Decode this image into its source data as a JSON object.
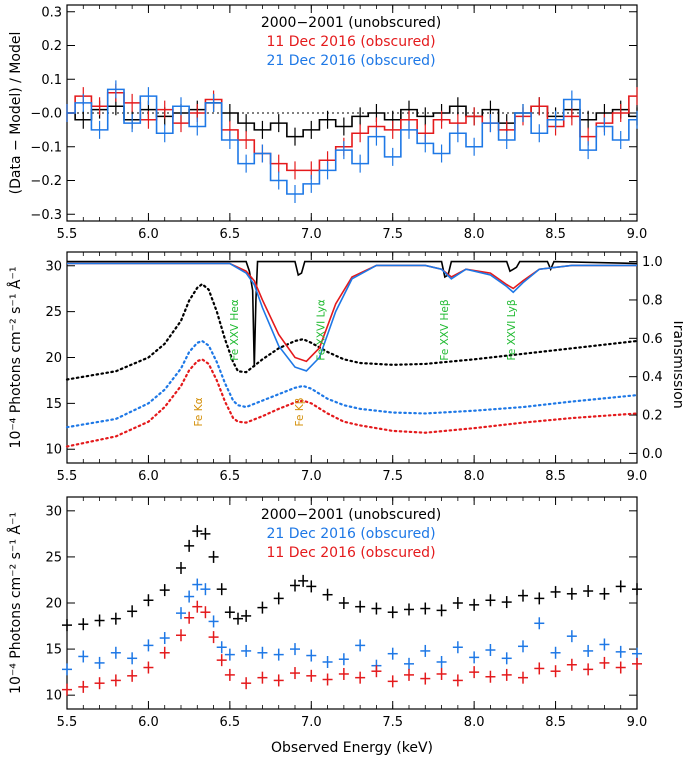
{
  "figure": {
    "xlabel": "Observed Energy (keV)",
    "legend": [
      "2000−2001 (unobscured)",
      "11 Dec 2016 (obscured)",
      "21 Dec 2016 (obscured)"
    ]
  },
  "chart_data": [
    {
      "type": "line",
      "panel": "top",
      "ylabel": "(Data − Model) / Model",
      "xlim": [
        5.5,
        9.0
      ],
      "ylim": [
        -0.32,
        0.32
      ],
      "xticks": [
        "5.5",
        "6.0",
        "6.5",
        "7.0",
        "7.5",
        "8.0",
        "8.5",
        "9.0"
      ],
      "yticks": [
        "−0.3",
        "−0.2",
        "−0.1",
        "−0.0",
        "0.1",
        "0.2",
        "0.3"
      ],
      "legend_placement": "top-center",
      "series": [
        {
          "name": "2000−2001 (unobscured)",
          "color": "#000000",
          "x": [
            5.5,
            5.6,
            5.7,
            5.8,
            5.9,
            6.0,
            6.1,
            6.2,
            6.3,
            6.4,
            6.5,
            6.6,
            6.7,
            6.8,
            6.9,
            7.0,
            7.1,
            7.2,
            7.3,
            7.4,
            7.5,
            7.6,
            7.7,
            7.8,
            7.9,
            8.0,
            8.1,
            8.2,
            8.3,
            8.4,
            8.5,
            8.6,
            8.7,
            8.8,
            8.9,
            9.0
          ],
          "y": [
            0.0,
            -0.02,
            0.01,
            0.02,
            -0.02,
            0.01,
            -0.01,
            0.0,
            0.01,
            0.03,
            0.0,
            -0.03,
            -0.05,
            -0.03,
            -0.07,
            -0.05,
            -0.02,
            -0.04,
            -0.01,
            0.0,
            -0.02,
            0.01,
            -0.01,
            0.0,
            0.02,
            -0.01,
            0.01,
            -0.03,
            0.0,
            0.02,
            -0.01,
            0.01,
            -0.02,
            0.0,
            0.01,
            -0.01
          ]
        },
        {
          "name": "11 Dec 2016 (obscured)",
          "color": "#e41a1c",
          "x": [
            5.5,
            5.6,
            5.7,
            5.8,
            5.9,
            6.0,
            6.1,
            6.2,
            6.3,
            6.4,
            6.5,
            6.6,
            6.7,
            6.8,
            6.9,
            7.0,
            7.1,
            7.2,
            7.3,
            7.4,
            7.5,
            7.6,
            7.7,
            7.8,
            7.9,
            8.0,
            8.1,
            8.2,
            8.3,
            8.4,
            8.5,
            8.6,
            8.7,
            8.8,
            8.9,
            9.0
          ],
          "y": [
            0.0,
            0.05,
            0.02,
            0.06,
            0.03,
            -0.02,
            0.01,
            -0.03,
            0.0,
            0.04,
            -0.05,
            -0.08,
            -0.12,
            -0.15,
            -0.17,
            -0.17,
            -0.14,
            -0.1,
            -0.06,
            -0.04,
            -0.05,
            -0.02,
            -0.06,
            -0.02,
            -0.03,
            -0.01,
            -0.03,
            -0.05,
            -0.01,
            0.02,
            -0.04,
            -0.01,
            -0.07,
            -0.03,
            0.0,
            0.05
          ]
        },
        {
          "name": "21 Dec 2016 (obscured)",
          "color": "#1e78e6",
          "x": [
            5.5,
            5.6,
            5.7,
            5.8,
            5.9,
            6.0,
            6.1,
            6.2,
            6.3,
            6.4,
            6.5,
            6.6,
            6.7,
            6.8,
            6.9,
            7.0,
            7.1,
            7.2,
            7.3,
            7.4,
            7.5,
            7.6,
            7.7,
            7.8,
            7.9,
            8.0,
            8.1,
            8.2,
            8.3,
            8.4,
            8.5,
            8.6,
            8.7,
            8.8,
            8.9,
            9.0
          ],
          "y": [
            0.0,
            0.03,
            -0.05,
            0.07,
            -0.03,
            0.05,
            -0.06,
            0.02,
            -0.04,
            0.03,
            -0.08,
            -0.15,
            -0.12,
            -0.2,
            -0.24,
            -0.21,
            -0.17,
            -0.11,
            -0.15,
            -0.07,
            -0.13,
            -0.05,
            -0.09,
            -0.12,
            -0.06,
            -0.1,
            -0.03,
            -0.08,
            0.0,
            -0.06,
            -0.02,
            0.04,
            -0.11,
            -0.04,
            -0.08,
            -0.02
          ]
        }
      ]
    },
    {
      "type": "line",
      "panel": "middle",
      "ylabel": "10⁻⁴ Photons cm⁻² s⁻¹ Å⁻¹",
      "ylabel_right": "Transmission",
      "xlim": [
        5.5,
        9.0
      ],
      "ylim": [
        8.5,
        31.5
      ],
      "ylim_right": [
        -0.05,
        1.05
      ],
      "xticks": [
        "5.5",
        "6.0",
        "6.5",
        "7.0",
        "7.5",
        "8.0",
        "8.5",
        "9.0"
      ],
      "yticks": [
        "10",
        "15",
        "20",
        "25",
        "30"
      ],
      "yticks_right": [
        "0.0",
        "0.2",
        "0.4",
        "0.6",
        "0.8",
        "1.0"
      ],
      "annotations": [
        {
          "text": "Fe XXV Heα",
          "x": 6.55,
          "color": "#22bb33"
        },
        {
          "text": "Fe XXVI Lyα",
          "x": 7.08,
          "color": "#22bb33"
        },
        {
          "text": "Fe XXV Heβ",
          "x": 7.84,
          "color": "#22bb33"
        },
        {
          "text": "Fe XXVI Lyβ",
          "x": 8.25,
          "color": "#22bb33"
        },
        {
          "text": "Fe Kα",
          "x": 6.33,
          "color": "#d4900a"
        },
        {
          "text": "Fe Kβ",
          "x": 6.95,
          "color": "#d4900a"
        }
      ],
      "series": [
        {
          "name": "2000−2001 (unobscured)",
          "style": "dotted",
          "color": "#000000",
          "x": [
            5.5,
            5.8,
            6.0,
            6.1,
            6.2,
            6.25,
            6.3,
            6.33,
            6.37,
            6.42,
            6.47,
            6.52,
            6.55,
            6.6,
            6.7,
            6.8,
            6.9,
            6.95,
            7.0,
            7.1,
            7.2,
            7.3,
            7.5,
            7.7,
            8.0,
            8.3,
            8.6,
            9.0
          ],
          "y": [
            17.6,
            18.5,
            20.0,
            21.5,
            24.0,
            26.2,
            27.6,
            28.0,
            27.4,
            25.0,
            22.0,
            19.5,
            18.5,
            18.4,
            19.8,
            21.0,
            21.8,
            22.0,
            21.6,
            20.6,
            19.8,
            19.4,
            19.2,
            19.3,
            19.8,
            20.4,
            21.0,
            21.8
          ]
        },
        {
          "name": "21 Dec 2016 (obscured)",
          "style": "dotted",
          "color": "#1e78e6",
          "x": [
            5.5,
            5.8,
            6.0,
            6.1,
            6.2,
            6.25,
            6.3,
            6.33,
            6.37,
            6.42,
            6.47,
            6.52,
            6.55,
            6.6,
            6.7,
            6.8,
            6.9,
            6.95,
            7.0,
            7.1,
            7.2,
            7.3,
            7.5,
            7.7,
            8.0,
            8.3,
            8.6,
            9.0
          ],
          "y": [
            12.4,
            13.3,
            15.0,
            16.5,
            18.8,
            20.6,
            21.6,
            21.8,
            21.3,
            19.5,
            17.2,
            15.3,
            14.8,
            14.6,
            15.3,
            16.0,
            16.7,
            16.9,
            16.6,
            15.5,
            14.8,
            14.4,
            14.0,
            13.9,
            14.2,
            14.6,
            15.2,
            15.9
          ]
        },
        {
          "name": "11 Dec 2016 (obscured)",
          "style": "dotted",
          "color": "#e41a1c",
          "x": [
            5.5,
            5.8,
            6.0,
            6.1,
            6.2,
            6.25,
            6.3,
            6.33,
            6.37,
            6.42,
            6.47,
            6.52,
            6.55,
            6.6,
            6.7,
            6.8,
            6.9,
            6.95,
            7.0,
            7.1,
            7.2,
            7.3,
            7.5,
            7.7,
            8.0,
            8.3,
            8.6,
            9.0
          ],
          "y": [
            10.3,
            11.4,
            13.0,
            14.6,
            16.9,
            18.6,
            19.6,
            19.8,
            19.3,
            17.5,
            15.2,
            13.4,
            13.0,
            12.9,
            13.6,
            14.4,
            15.1,
            15.3,
            15.0,
            13.9,
            13.0,
            12.6,
            12.0,
            11.8,
            12.3,
            12.9,
            13.4,
            13.9
          ]
        },
        {
          "name": "Transmission (2000−2001)",
          "style": "solid",
          "color": "#000000",
          "axis": "right",
          "x": [
            5.5,
            6.55,
            6.6,
            6.62,
            6.64,
            6.65,
            6.66,
            6.67,
            6.7,
            6.9,
            6.92,
            6.94,
            6.96,
            7.0,
            7.8,
            7.82,
            7.84,
            7.86,
            8.2,
            8.22,
            8.24,
            8.26,
            8.28,
            8.45,
            8.47,
            8.49,
            9.0
          ],
          "y": [
            1.0,
            1.0,
            1.0,
            0.95,
            0.85,
            0.45,
            0.8,
            1.0,
            1.0,
            1.0,
            0.93,
            0.94,
            1.0,
            1.0,
            1.0,
            0.92,
            0.93,
            1.0,
            1.0,
            0.95,
            0.96,
            0.97,
            1.0,
            1.0,
            0.96,
            1.0,
            0.99
          ]
        },
        {
          "name": "Transmission (11 Dec 2016)",
          "style": "solid",
          "color": "#e41a1c",
          "axis": "right",
          "x": [
            5.5,
            6.5,
            6.6,
            6.65,
            6.7,
            6.8,
            6.9,
            6.97,
            7.05,
            7.15,
            7.25,
            7.4,
            7.7,
            7.8,
            7.86,
            7.95,
            8.1,
            8.2,
            8.24,
            8.3,
            8.4,
            8.6,
            9.0
          ],
          "y": [
            0.99,
            0.99,
            0.95,
            0.9,
            0.8,
            0.62,
            0.5,
            0.48,
            0.55,
            0.78,
            0.92,
            0.98,
            0.98,
            0.96,
            0.92,
            0.96,
            0.94,
            0.88,
            0.86,
            0.9,
            0.96,
            0.98,
            0.98
          ]
        },
        {
          "name": "Transmission (21 Dec 2016)",
          "style": "solid",
          "color": "#1e78e6",
          "axis": "right",
          "x": [
            5.5,
            6.5,
            6.6,
            6.65,
            6.7,
            6.8,
            6.9,
            6.97,
            7.05,
            7.15,
            7.25,
            7.4,
            7.7,
            7.8,
            7.86,
            7.95,
            8.1,
            8.2,
            8.24,
            8.3,
            8.4,
            8.6,
            9.0
          ],
          "y": [
            0.99,
            0.99,
            0.94,
            0.88,
            0.76,
            0.56,
            0.45,
            0.43,
            0.5,
            0.74,
            0.91,
            0.98,
            0.98,
            0.96,
            0.91,
            0.96,
            0.93,
            0.87,
            0.84,
            0.89,
            0.96,
            0.98,
            0.98
          ]
        }
      ]
    },
    {
      "type": "scatter",
      "panel": "bottom",
      "ylabel": "10⁻⁴ Photons cm⁻² s⁻¹ Å⁻¹",
      "xlabel": "Observed Energy (keV)",
      "xlim": [
        5.5,
        9.0
      ],
      "ylim": [
        8.5,
        31.5
      ],
      "xticks": [
        "5.5",
        "6.0",
        "6.5",
        "7.0",
        "7.5",
        "8.0",
        "8.5",
        "9.0"
      ],
      "yticks": [
        "10",
        "15",
        "20",
        "25",
        "30"
      ],
      "legend_placement": "top-center",
      "series": [
        {
          "name": "2000−2001 (unobscured)",
          "color": "#000000",
          "x": [
            5.5,
            5.6,
            5.7,
            5.8,
            5.9,
            6.0,
            6.1,
            6.2,
            6.25,
            6.3,
            6.35,
            6.4,
            6.45,
            6.5,
            6.55,
            6.6,
            6.7,
            6.8,
            6.9,
            6.95,
            7.0,
            7.1,
            7.2,
            7.3,
            7.4,
            7.5,
            7.6,
            7.7,
            7.8,
            7.9,
            8.0,
            8.1,
            8.2,
            8.3,
            8.4,
            8.5,
            8.6,
            8.7,
            8.8,
            8.9,
            9.0
          ],
          "y": [
            17.6,
            17.7,
            18.1,
            18.3,
            19.1,
            20.3,
            21.4,
            23.8,
            26.2,
            27.8,
            27.5,
            25.0,
            21.5,
            19.0,
            18.3,
            18.6,
            19.5,
            20.5,
            21.9,
            22.4,
            21.8,
            20.9,
            20.0,
            19.6,
            19.4,
            19.0,
            19.3,
            19.4,
            19.2,
            20.0,
            19.8,
            20.3,
            20.1,
            20.8,
            20.5,
            21.2,
            21.0,
            21.3,
            21.0,
            21.8,
            21.5
          ]
        },
        {
          "name": "21 Dec 2016 (obscured)",
          "color": "#1e78e6",
          "x": [
            5.5,
            5.6,
            5.7,
            5.8,
            5.9,
            6.0,
            6.1,
            6.2,
            6.25,
            6.3,
            6.35,
            6.4,
            6.45,
            6.5,
            6.6,
            6.7,
            6.8,
            6.9,
            7.0,
            7.1,
            7.2,
            7.3,
            7.4,
            7.5,
            7.6,
            7.7,
            7.8,
            7.9,
            8.0,
            8.1,
            8.2,
            8.3,
            8.4,
            8.5,
            8.6,
            8.7,
            8.8,
            8.9,
            9.0
          ],
          "y": [
            12.8,
            14.2,
            13.5,
            14.6,
            14.0,
            15.4,
            16.2,
            18.9,
            20.7,
            22.0,
            21.5,
            18.0,
            15.2,
            14.4,
            14.8,
            14.6,
            14.4,
            15.0,
            14.3,
            13.6,
            13.9,
            15.4,
            13.2,
            14.5,
            13.4,
            14.8,
            13.6,
            15.2,
            14.1,
            14.9,
            14.0,
            15.3,
            17.8,
            14.6,
            16.4,
            14.8,
            15.5,
            14.7,
            14.5
          ]
        },
        {
          "name": "11 Dec 2016 (obscured)",
          "color": "#e41a1c",
          "x": [
            5.5,
            5.6,
            5.7,
            5.8,
            5.9,
            6.0,
            6.1,
            6.2,
            6.25,
            6.3,
            6.35,
            6.4,
            6.45,
            6.5,
            6.6,
            6.7,
            6.8,
            6.9,
            7.0,
            7.1,
            7.2,
            7.3,
            7.4,
            7.5,
            7.6,
            7.7,
            7.8,
            7.9,
            8.0,
            8.1,
            8.2,
            8.3,
            8.4,
            8.5,
            8.6,
            8.7,
            8.8,
            8.9,
            9.0
          ],
          "y": [
            10.6,
            10.9,
            11.3,
            11.6,
            12.1,
            13.0,
            14.6,
            16.5,
            18.4,
            19.6,
            19.0,
            16.3,
            13.8,
            12.2,
            11.3,
            11.9,
            11.6,
            12.4,
            12.1,
            11.7,
            12.3,
            11.9,
            12.6,
            11.5,
            12.2,
            11.8,
            12.3,
            11.6,
            12.5,
            12.0,
            12.2,
            11.9,
            12.9,
            12.6,
            13.3,
            12.8,
            13.5,
            13.0,
            13.4
          ]
        }
      ]
    }
  ]
}
